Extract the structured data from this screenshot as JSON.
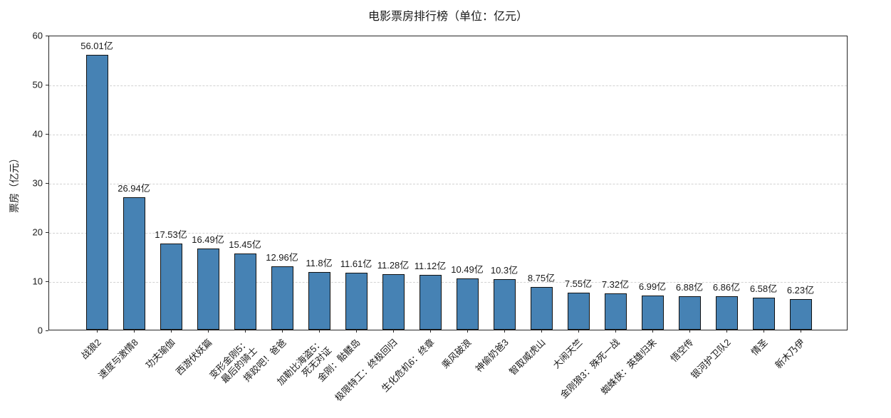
{
  "chart_data": {
    "type": "bar",
    "title": "电影票房排行榜（单位：亿元）",
    "xlabel": "",
    "ylabel": "票房（亿元）",
    "ylim": [
      0,
      60
    ],
    "yticks": [
      0,
      10,
      20,
      30,
      40,
      50,
      60
    ],
    "grid": "horizontal-dashed",
    "legend": "none",
    "bar_color": "#4682B4",
    "bar_edge_color": "#111111",
    "categories": [
      "战狼2",
      "速度与激情8",
      "功夫瑜伽",
      "西游伏妖篇",
      "变形金刚5：\n最后的骑士",
      "摔跤吧！爸爸",
      "加勒比海盗5：\n死无对证",
      "金刚：骷髅岛",
      "极限特工：终极回归",
      "生化危机6：终章",
      "乘风破浪",
      "神偷奶爸3",
      "智取威虎山",
      "大闹天竺",
      "金刚狼3：殊死一战",
      "蜘蛛侠：英雄归来",
      "悟空传",
      "银河护卫队2",
      "情圣",
      "新木乃伊"
    ],
    "values": [
      56.01,
      26.94,
      17.53,
      16.49,
      15.45,
      12.96,
      11.8,
      11.61,
      11.28,
      11.12,
      10.49,
      10.3,
      8.75,
      7.55,
      7.32,
      6.99,
      6.88,
      6.86,
      6.58,
      6.23
    ],
    "value_labels": [
      "56.01亿",
      "26.94亿",
      "17.53亿",
      "16.49亿",
      "15.45亿",
      "12.96亿",
      "11.8亿",
      "11.61亿",
      "11.28亿",
      "11.12亿",
      "10.49亿",
      "10.3亿",
      "8.75亿",
      "7.55亿",
      "7.32亿",
      "6.99亿",
      "6.88亿",
      "6.86亿",
      "6.58亿",
      "6.23亿"
    ]
  }
}
